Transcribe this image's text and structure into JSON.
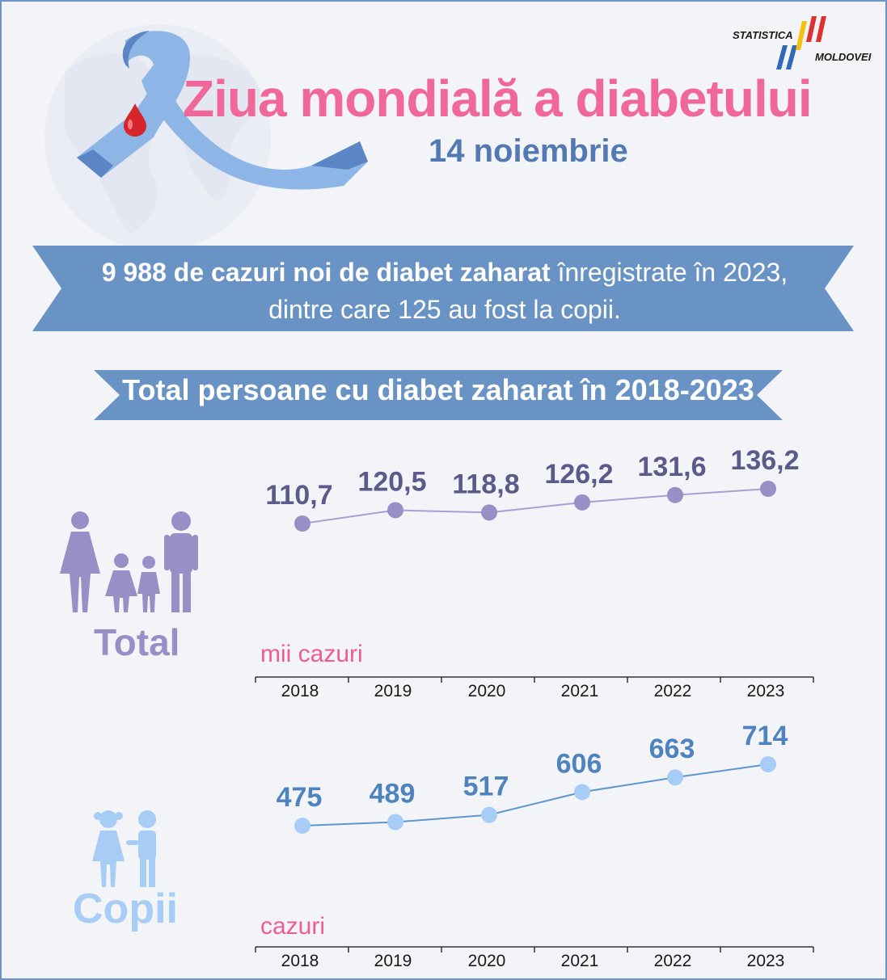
{
  "header": {
    "title": "Ziua mondială a diabetului",
    "subtitle": "14 noiembrie",
    "logo_line1": "STATISTICA",
    "logo_line2": "MOLDOVEI"
  },
  "banner": {
    "bold": "9 988 de cazuri noi de diabet zaharat",
    "rest1": " înregistrate în 2023,",
    "line2": "dintre care 125 au fost la copii."
  },
  "section_title": "Total persoane cu diabet zaharat în 2018-2023",
  "colors": {
    "title_pink": "#f0679a",
    "banner_blue": "#6a93c5",
    "total_purple": "#9790c6",
    "copii_blue": "#5c95cf",
    "copii_dot": "#a7cdf6"
  },
  "chart_data": [
    {
      "type": "line",
      "label": "Total",
      "unit": "mii cazuri",
      "categories": [
        "2018",
        "2019",
        "2020",
        "2021",
        "2022",
        "2023"
      ],
      "values": [
        110.7,
        120.5,
        118.8,
        126.2,
        131.6,
        136.2
      ],
      "value_labels": [
        "110,7",
        "120,5",
        "118,8",
        "126,2",
        "131,6",
        "136,2"
      ],
      "x_tick_labels": [
        "2018",
        "2019",
        "2020",
        "2021",
        "2022",
        "2023"
      ]
    },
    {
      "type": "line",
      "label": "Copii",
      "unit": "cazuri",
      "categories": [
        "2018",
        "2019",
        "2020",
        "2021",
        "2022",
        "2023"
      ],
      "values": [
        475,
        489,
        517,
        606,
        663,
        714
      ],
      "value_labels": [
        "475",
        "489",
        "517",
        "606",
        "663",
        "714"
      ],
      "x_tick_labels": [
        "2018",
        "2019",
        "2020",
        "2021",
        "2022",
        "2023"
      ]
    }
  ]
}
